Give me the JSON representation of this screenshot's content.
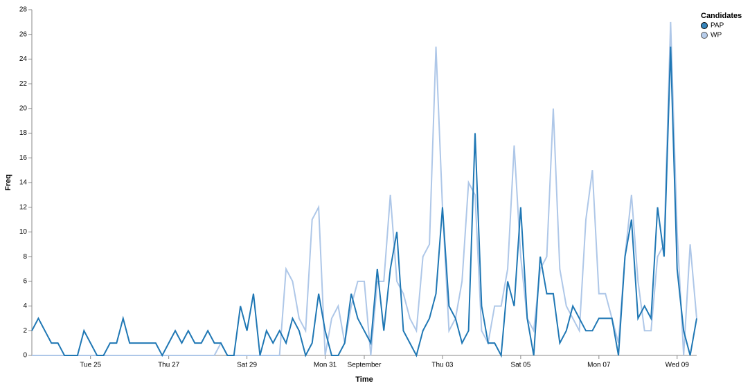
{
  "chart_data": {
    "type": "line",
    "x_label": "Time",
    "y_label": "Freq",
    "legend_title": "Candidates",
    "legend_position": "top-right",
    "x": [
      "08-23 12:00",
      "08-23 16:00",
      "08-23 20:00",
      "08-24 00:00",
      "08-24 04:00",
      "08-24 08:00",
      "08-24 12:00",
      "08-24 16:00",
      "08-24 20:00",
      "08-25 00:00",
      "08-25 04:00",
      "08-25 08:00",
      "08-25 12:00",
      "08-25 16:00",
      "08-25 20:00",
      "08-26 00:00",
      "08-26 04:00",
      "08-26 08:00",
      "08-26 12:00",
      "08-26 16:00",
      "08-26 20:00",
      "08-27 00:00",
      "08-27 04:00",
      "08-27 08:00",
      "08-27 12:00",
      "08-27 16:00",
      "08-27 20:00",
      "08-28 00:00",
      "08-28 04:00",
      "08-28 08:00",
      "08-28 12:00",
      "08-28 16:00",
      "08-28 20:00",
      "08-29 00:00",
      "08-29 04:00",
      "08-29 08:00",
      "08-29 12:00",
      "08-29 16:00",
      "08-29 20:00",
      "08-30 00:00",
      "08-30 04:00",
      "08-30 08:00",
      "08-30 12:00",
      "08-30 16:00",
      "08-30 20:00",
      "08-31 00:00",
      "08-31 04:00",
      "08-31 08:00",
      "08-31 12:00",
      "08-31 16:00",
      "08-31 20:00",
      "09-01 00:00",
      "09-01 04:00",
      "09-01 08:00",
      "09-01 12:00",
      "09-01 16:00",
      "09-01 20:00",
      "09-02 00:00",
      "09-02 04:00",
      "09-02 08:00",
      "09-02 12:00",
      "09-02 16:00",
      "09-02 20:00",
      "09-03 00:00",
      "09-03 04:00",
      "09-03 08:00",
      "09-03 12:00",
      "09-03 16:00",
      "09-03 20:00",
      "09-04 00:00",
      "09-04 04:00",
      "09-04 08:00",
      "09-04 12:00",
      "09-04 16:00",
      "09-04 20:00",
      "09-05 00:00",
      "09-05 04:00",
      "09-05 08:00",
      "09-05 12:00",
      "09-05 16:00",
      "09-05 20:00",
      "09-06 00:00",
      "09-06 04:00",
      "09-06 08:00",
      "09-06 12:00",
      "09-06 16:00",
      "09-06 20:00",
      "09-07 00:00",
      "09-07 04:00",
      "09-07 08:00",
      "09-07 12:00",
      "09-07 16:00",
      "09-07 20:00",
      "09-08 00:00",
      "09-08 04:00",
      "09-08 08:00",
      "09-08 12:00",
      "09-08 16:00",
      "09-08 20:00",
      "09-09 00:00",
      "09-09 04:00",
      "09-09 08:00",
      "09-09 12:00"
    ],
    "series": [
      {
        "name": "PAP",
        "color": "#1f77b4",
        "values": [
          2,
          3,
          2,
          1,
          1,
          0,
          0,
          0,
          2,
          1,
          0,
          0,
          1,
          1,
          3,
          1,
          1,
          1,
          1,
          1,
          0,
          1,
          2,
          1,
          2,
          1,
          1,
          2,
          1,
          1,
          0,
          0,
          4,
          2,
          5,
          0,
          2,
          1,
          2,
          1,
          3,
          2,
          0,
          1,
          5,
          2,
          0,
          0,
          1,
          5,
          3,
          2,
          1,
          7,
          2,
          7,
          10,
          2,
          1,
          0,
          2,
          3,
          5,
          12,
          4,
          3,
          1,
          2,
          18,
          4,
          1,
          1,
          0,
          6,
          4,
          12,
          3,
          0,
          8,
          5,
          5,
          1,
          2,
          4,
          3,
          2,
          2,
          3,
          3,
          3,
          0,
          8,
          11,
          3,
          4,
          3,
          12,
          8,
          25,
          7,
          2,
          0,
          3
        ]
      },
      {
        "name": "WP",
        "color": "#aec7e8",
        "values": [
          0,
          0,
          0,
          0,
          0,
          0,
          0,
          0,
          0,
          0,
          0,
          0,
          0,
          0,
          0,
          0,
          0,
          0,
          0,
          0,
          0,
          0,
          0,
          0,
          0,
          0,
          0,
          0,
          0,
          1,
          0,
          0,
          0,
          0,
          0,
          0,
          0,
          0,
          0,
          7,
          6,
          3,
          2,
          11,
          12,
          0,
          3,
          4,
          1,
          4,
          6,
          6,
          0,
          6,
          6,
          13,
          6,
          5,
          3,
          2,
          8,
          9,
          25,
          12,
          2,
          3,
          6,
          14,
          13,
          2,
          1,
          4,
          4,
          7,
          17,
          8,
          3,
          2,
          7,
          8,
          20,
          7,
          4,
          3,
          2,
          11,
          15,
          5,
          5,
          3,
          1,
          8,
          13,
          6,
          2,
          2,
          8,
          9,
          27,
          10,
          0,
          9,
          3
        ]
      }
    ],
    "xlim": [
      "08-23 12:00",
      "09-09 12:00"
    ],
    "xticks": [
      {
        "value": "08-25 00:00",
        "label": "Tue 25"
      },
      {
        "value": "08-27 00:00",
        "label": "Thu 27"
      },
      {
        "value": "08-29 00:00",
        "label": "Sat 29"
      },
      {
        "value": "08-31 00:00",
        "label": "Mon 31"
      },
      {
        "value": "09-01 00:00",
        "label": "September"
      },
      {
        "value": "09-03 00:00",
        "label": "Thu 03"
      },
      {
        "value": "09-05 00:00",
        "label": "Sat 05"
      },
      {
        "value": "09-07 00:00",
        "label": "Mon 07"
      },
      {
        "value": "09-09 00:00",
        "label": "Wed 09"
      }
    ],
    "ylim": [
      0,
      28
    ],
    "yticks": [
      0,
      2,
      4,
      6,
      8,
      10,
      12,
      14,
      16,
      18,
      20,
      22,
      24,
      26,
      28
    ],
    "grid": false
  }
}
